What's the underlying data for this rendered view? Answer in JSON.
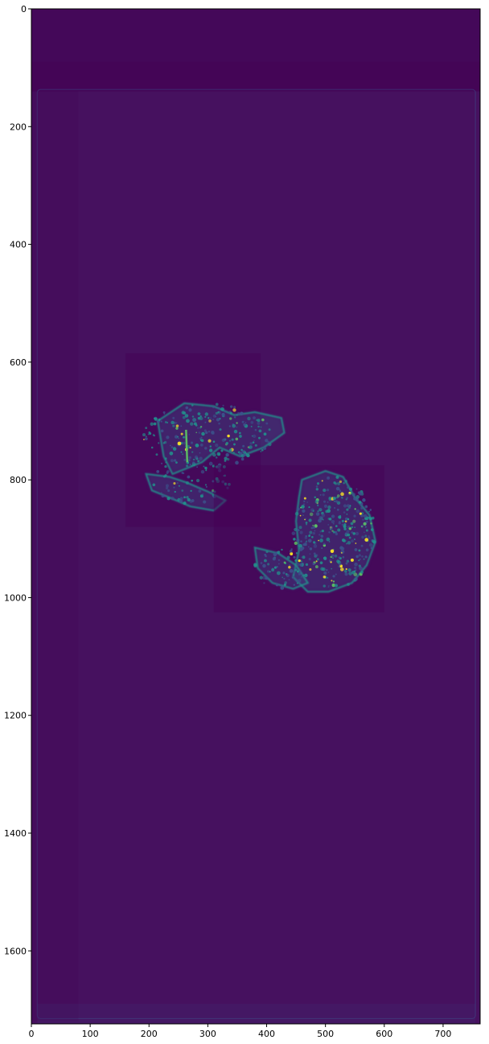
{
  "chart_data": {
    "type": "heatmap",
    "title": "",
    "xlabel": "",
    "ylabel": "",
    "xlim": [
      0,
      763
    ],
    "ylim": [
      1724,
      0
    ],
    "x_ticks": [
      0,
      100,
      200,
      300,
      400,
      500,
      600,
      700
    ],
    "y_ticks": [
      0,
      200,
      400,
      600,
      800,
      1000,
      1200,
      1400,
      1600
    ],
    "colormap": "viridis",
    "background_color": "#46115f",
    "colors": {
      "low": "#440154",
      "background": "#46115f",
      "mid": "#3b528b",
      "teal": "#21918c",
      "green": "#5ec962",
      "high": "#fde725"
    },
    "grid": false,
    "legend": "none",
    "regions": [
      {
        "name": "upper tissue section",
        "x_range": [
          195,
          370
        ],
        "y_range": [
          625,
          855
        ],
        "intensity": "medium-high"
      },
      {
        "name": "lower tissue section",
        "x_range": [
          390,
          580
        ],
        "y_range": [
          780,
          1020
        ],
        "intensity": "high"
      }
    ]
  }
}
